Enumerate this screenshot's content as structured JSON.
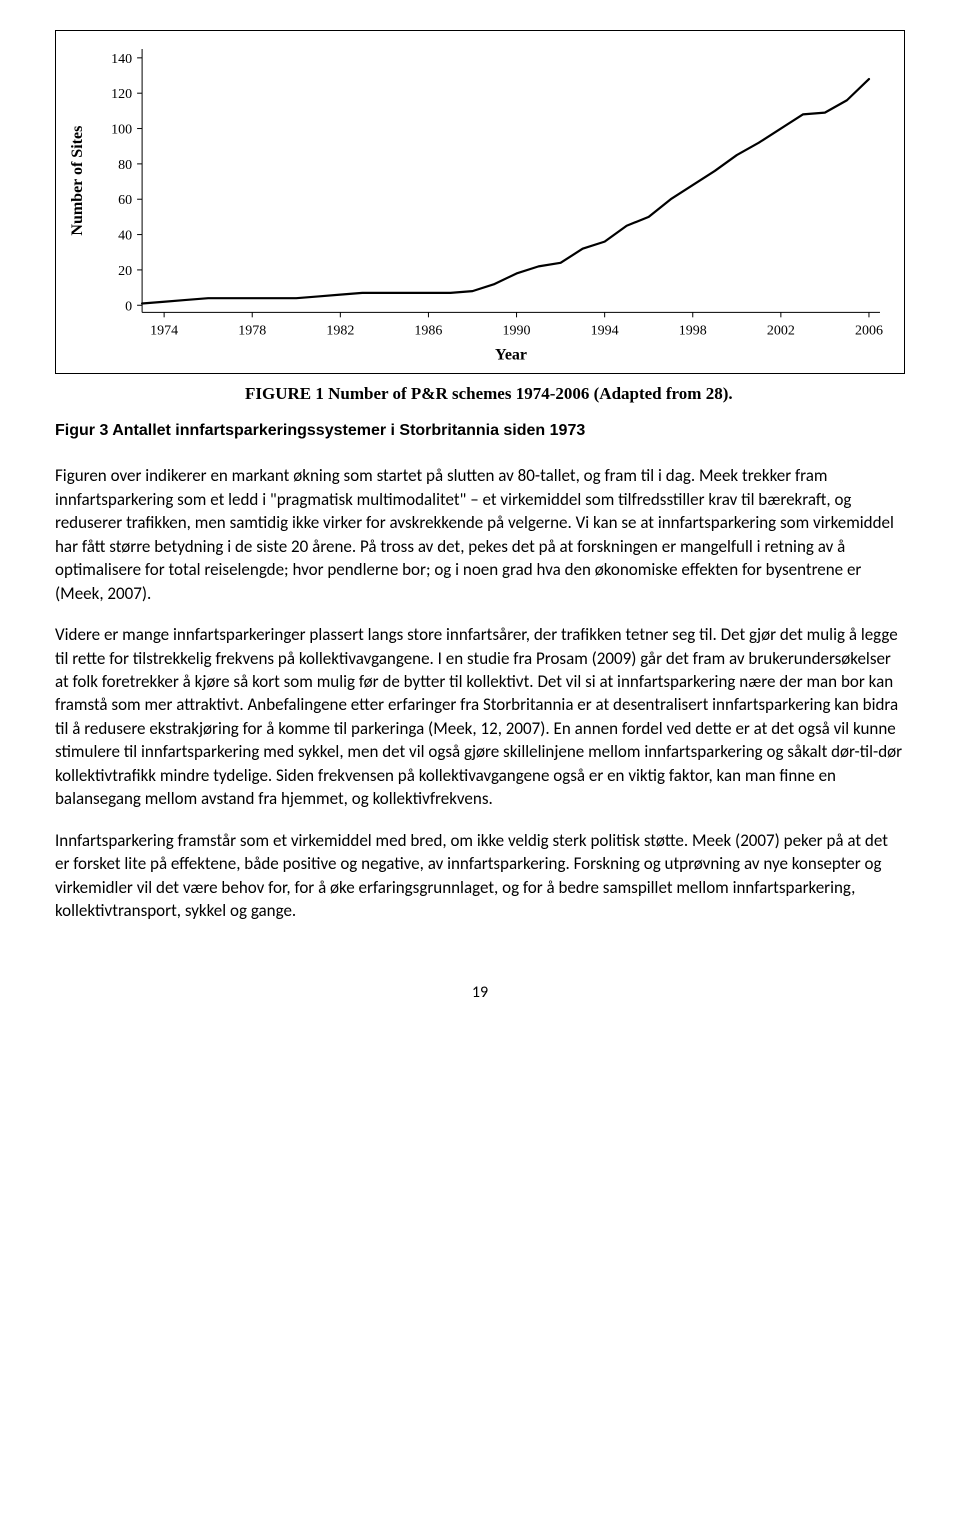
{
  "chart": {
    "type": "line",
    "x_years": [
      1973,
      1974,
      1975,
      1976,
      1977,
      1978,
      1979,
      1980,
      1981,
      1982,
      1983,
      1984,
      1985,
      1986,
      1987,
      1988,
      1989,
      1990,
      1991,
      1992,
      1993,
      1994,
      1995,
      1996,
      1997,
      1998,
      1999,
      2000,
      2001,
      2002,
      2003,
      2004,
      2005,
      2006
    ],
    "y_values": [
      1,
      2,
      3,
      4,
      4,
      4,
      4,
      4,
      5,
      6,
      7,
      7,
      7,
      7,
      7,
      8,
      12,
      18,
      22,
      24,
      32,
      36,
      45,
      50,
      60,
      68,
      76,
      85,
      92,
      100,
      108,
      109,
      116,
      128
    ],
    "x_ticks": [
      1974,
      1978,
      1982,
      1986,
      1990,
      1994,
      1998,
      2002,
      2006
    ],
    "y_ticks": [
      0,
      20,
      40,
      60,
      80,
      100,
      120,
      140
    ],
    "xlabel": "Year",
    "ylabel": "Number of Sites",
    "xlim": [
      1973,
      2006.5
    ],
    "ylim": [
      -4,
      145
    ],
    "line_color": "#000000",
    "line_width": 2.2,
    "background": "#ffffff",
    "axis_color": "#000000",
    "tick_font_size": 14,
    "label_font_size": 16
  },
  "captions": {
    "inner": "FIGURE 1 Number of P&R schemes 1974-2006 (Adapted from 28).",
    "outer": "Figur 3 Antallet innfartsparkeringssystemer i Storbritannia siden 1973"
  },
  "paragraphs": {
    "p1": "Figuren over indikerer en markant økning som startet på slutten av 80-tallet, og fram til i dag. Meek trekker fram innfartsparkering som et ledd i \"pragmatisk multimodalitet\" – et virkemiddel som tilfredsstiller krav til bærekraft, og reduserer trafikken, men samtidig ikke virker for avskrekkende på velgerne. Vi kan se at innfartsparkering som virkemiddel har fått større betydning i de siste 20 årene. På tross av det, pekes det på at forskningen er mangelfull i retning av å optimalisere for total reiselengde; hvor pendlerne bor; og i noen grad hva den økonomiske effekten for bysentrene er (Meek, 2007).",
    "p2": "Videre er mange innfartsparkeringer plassert langs store innfartsårer, der trafikken tetner seg til. Det gjør det mulig å legge til rette for tilstrekkelig frekvens på kollektivavgangene. I en studie fra Prosam (2009) går det fram av brukerundersøkelser at folk foretrekker å kjøre så kort som mulig før de bytter til kollektivt. Det vil si at innfartsparkering nære der man bor kan framstå som mer attraktivt. Anbefalingene etter erfaringer fra Storbritannia er at desentralisert innfartsparkering kan bidra til å redusere ekstrakjøring for å komme til parkeringa (Meek, 12, 2007). En annen fordel ved dette er at det også vil kunne stimulere til innfartsparkering med sykkel, men det vil også gjøre skillelinjene mellom innfartsparkering og såkalt dør-til-dør kollektivtrafikk mindre tydelige. Siden frekvensen på kollektivavgangene også er en viktig faktor, kan man finne en balansegang mellom avstand fra hjemmet, og kollektivfrekvens.",
    "p3": "Innfartsparkering framstår som et virkemiddel med bred, om ikke veldig sterk politisk støtte. Meek (2007) peker på at det er forsket lite på effektene, både positive og negative, av innfartsparkering. Forskning og utprøvning av nye konsepter og virkemidler vil det være behov for, for å øke erfaringsgrunnlaget, og for å bedre samspillet mellom innfartsparkering, kollektivtransport, sykkel og gange."
  },
  "page_number": "19"
}
